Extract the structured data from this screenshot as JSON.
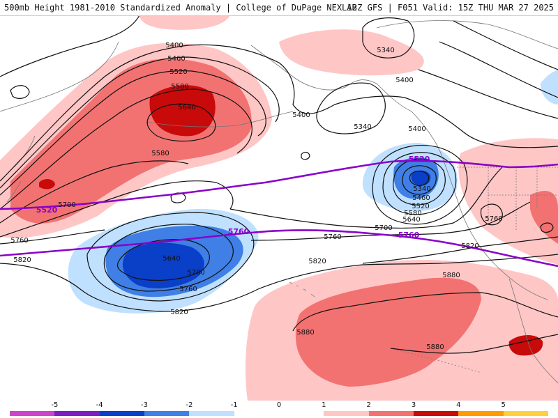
{
  "header": {
    "title": "500mb Height 1981-2010 Standardized Anomaly | College of DuPage NEXLAB",
    "model_info": "12Z GFS | F051 Valid: 15Z THU MAR 27 2025"
  },
  "colors": {
    "neg5": "#cc44cc",
    "neg4": "#7a1fc2",
    "neg3": "#0a3fc8",
    "neg2": "#3f7fe6",
    "neg1": "#bfe0ff",
    "zero": "#ffffff",
    "pos1": "#ffc6c6",
    "pos2": "#f27272",
    "pos3": "#c80a0a",
    "pos4": "#ff9a00",
    "pos5": "#ffcf40",
    "contour": "#111111",
    "highlight": "#8a00c8"
  },
  "contour_labels": [
    {
      "text": "5400"
    },
    {
      "text": "5460"
    },
    {
      "text": "5520"
    },
    {
      "text": "5580"
    },
    {
      "text": "5640"
    },
    {
      "text": "5580"
    },
    {
      "text": "5700"
    },
    {
      "text": "5760"
    },
    {
      "text": "5820"
    },
    {
      "text": "5640"
    },
    {
      "text": "5700"
    },
    {
      "text": "5760"
    },
    {
      "text": "5820"
    },
    {
      "text": "5400"
    },
    {
      "text": "5340"
    },
    {
      "text": "5340"
    },
    {
      "text": "5400"
    },
    {
      "text": "5400"
    },
    {
      "text": "5340"
    },
    {
      "text": "5460"
    },
    {
      "text": "5520"
    },
    {
      "text": "5580"
    },
    {
      "text": "5640"
    },
    {
      "text": "5700"
    },
    {
      "text": "5760"
    },
    {
      "text": "5820"
    },
    {
      "text": "5820"
    },
    {
      "text": "5880"
    },
    {
      "text": "5880"
    },
    {
      "text": "5880"
    },
    {
      "text": "5760"
    }
  ],
  "highlight_labels": [
    {
      "text": "5520"
    },
    {
      "text": "5760"
    },
    {
      "text": "5520"
    },
    {
      "text": "5760"
    }
  ],
  "colorbar": {
    "ticks": [
      "-5",
      "-4",
      "-3",
      "-2",
      "-1",
      "0",
      "1",
      "2",
      "3",
      "4",
      "5"
    ]
  }
}
